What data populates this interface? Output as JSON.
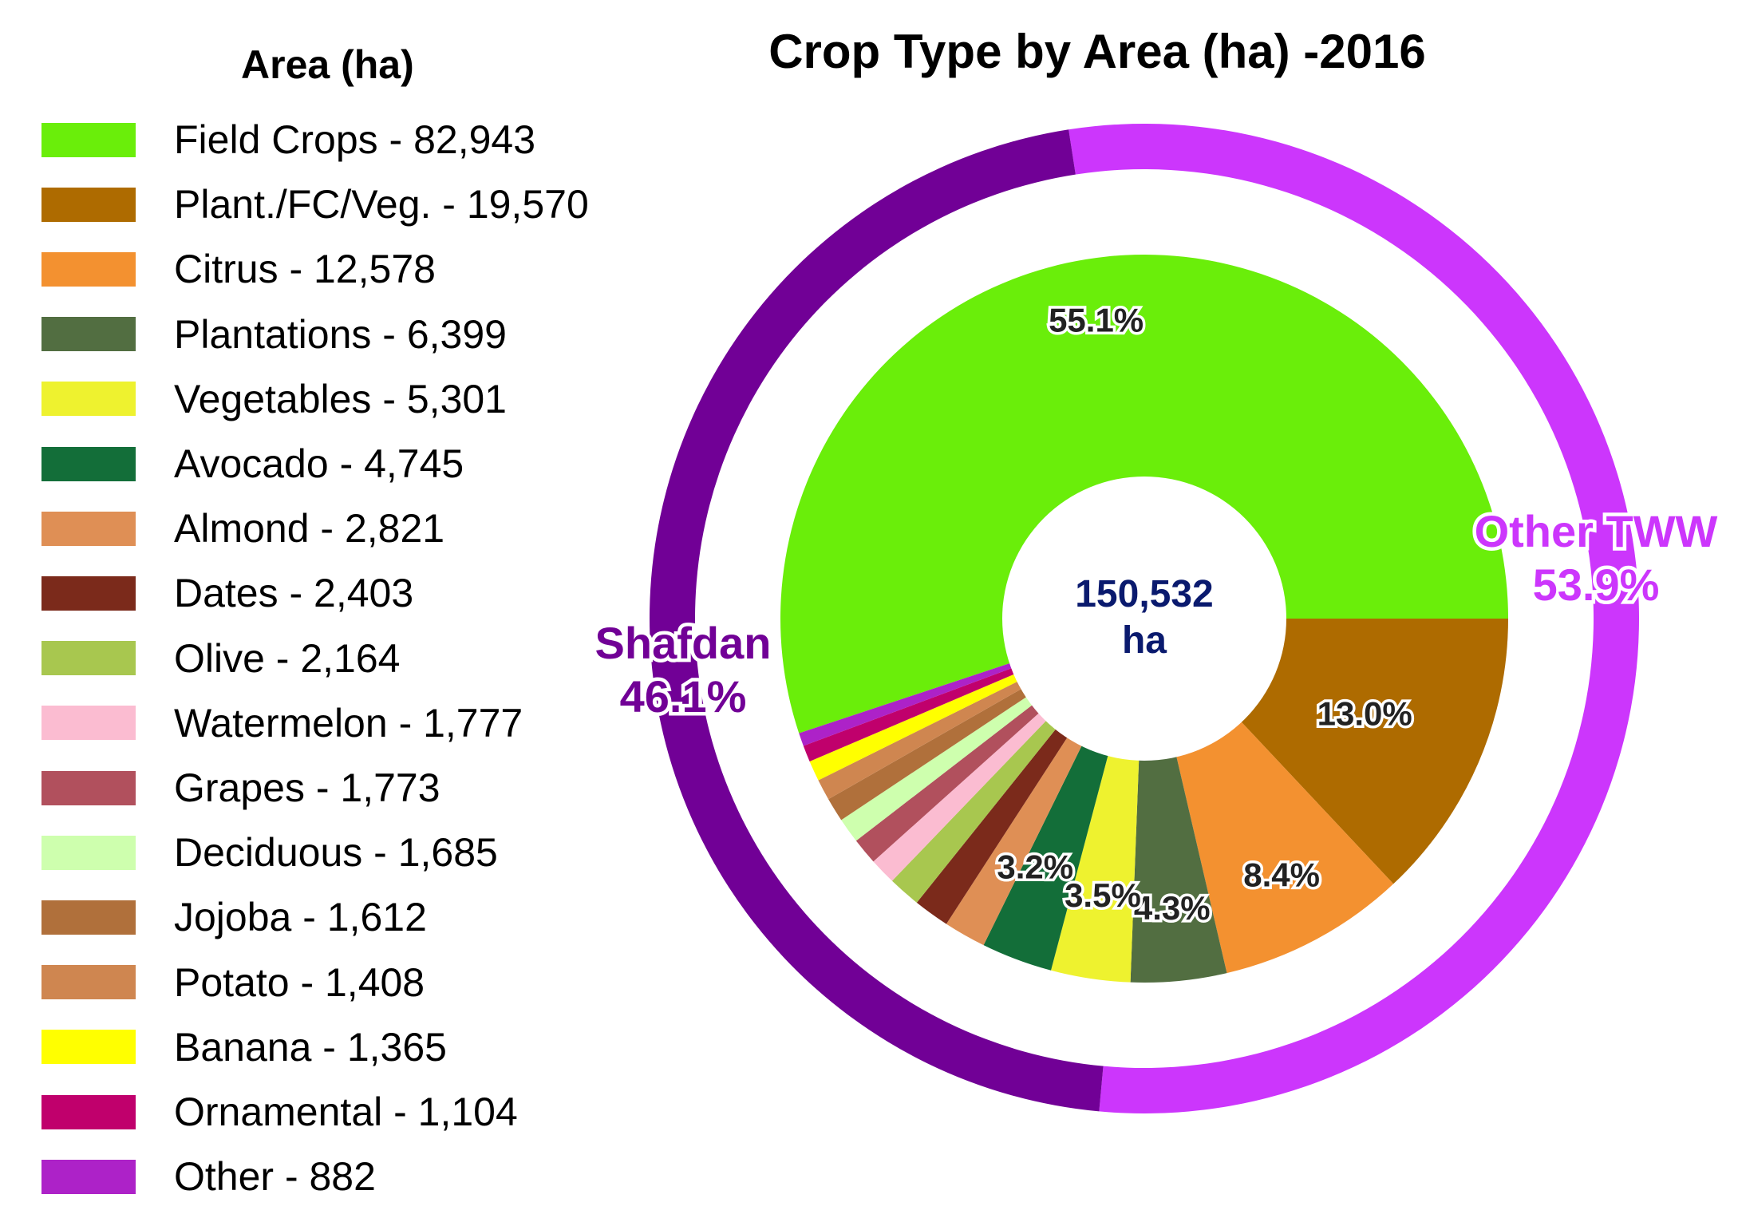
{
  "chart_data": {
    "type": "pie",
    "title": "Crop Type by Area (ha) -2016",
    "legend_title": "Area (ha)",
    "legend_position": "left",
    "center_label": [
      "150,532",
      "ha"
    ],
    "inner_ring": {
      "slices": [
        {
          "label": "Field Crops - 82,943",
          "value": 82943,
          "color": "#6aee0a",
          "pct_label": "55.1%"
        },
        {
          "label": "Plant./FC/Veg. - 19,570",
          "value": 19570,
          "color": "#ae6b00",
          "pct_label": "13.0%"
        },
        {
          "label": "Citrus - 12,578",
          "value": 12578,
          "color": "#f39130",
          "pct_label": "8.4%"
        },
        {
          "label": "Plantations - 6,399",
          "value": 6399,
          "color": "#526e41",
          "pct_label": "4.3%"
        },
        {
          "label": "Vegetables - 5,301",
          "value": 5301,
          "color": "#eef22f",
          "pct_label": "3.5%"
        },
        {
          "label": "Avocado - 4,745",
          "value": 4745,
          "color": "#136e39",
          "pct_label": "3.2%"
        },
        {
          "label": "Almond - 2,821",
          "value": 2821,
          "color": "#df8f55",
          "pct_label": ""
        },
        {
          "label": "Dates - 2,403",
          "value": 2403,
          "color": "#7b2a1b",
          "pct_label": ""
        },
        {
          "label": "Olive - 2,164",
          "value": 2164,
          "color": "#a8c74f",
          "pct_label": ""
        },
        {
          "label": "Watermelon - 1,777",
          "value": 1777,
          "color": "#fbbcd1",
          "pct_label": ""
        },
        {
          "label": "Grapes - 1,773",
          "value": 1773,
          "color": "#b1505d",
          "pct_label": ""
        },
        {
          "label": "Deciduous - 1,685",
          "value": 1685,
          "color": "#ceffae",
          "pct_label": ""
        },
        {
          "label": "Jojoba - 1,612",
          "value": 1612,
          "color": "#b0703b",
          "pct_label": ""
        },
        {
          "label": "Potato - 1,408",
          "value": 1408,
          "color": "#cf8650",
          "pct_label": ""
        },
        {
          "label": "Banana - 1,365",
          "value": 1365,
          "color": "#ffff00",
          "pct_label": ""
        },
        {
          "label": "Ornamental - 1,104",
          "value": 1104,
          "color": "#c0006c",
          "pct_label": ""
        },
        {
          "label": "Other - 882",
          "value": 882,
          "color": "#ad22c8",
          "pct_label": ""
        }
      ]
    },
    "outer_ring": {
      "slices": [
        {
          "name": "Other TWW",
          "value": 53.9,
          "pct_label": "53.9%",
          "color": "#cc36fc"
        },
        {
          "name": "Shafdan",
          "value": 46.1,
          "pct_label": "46.1%",
          "color": "#710096"
        }
      ]
    }
  }
}
